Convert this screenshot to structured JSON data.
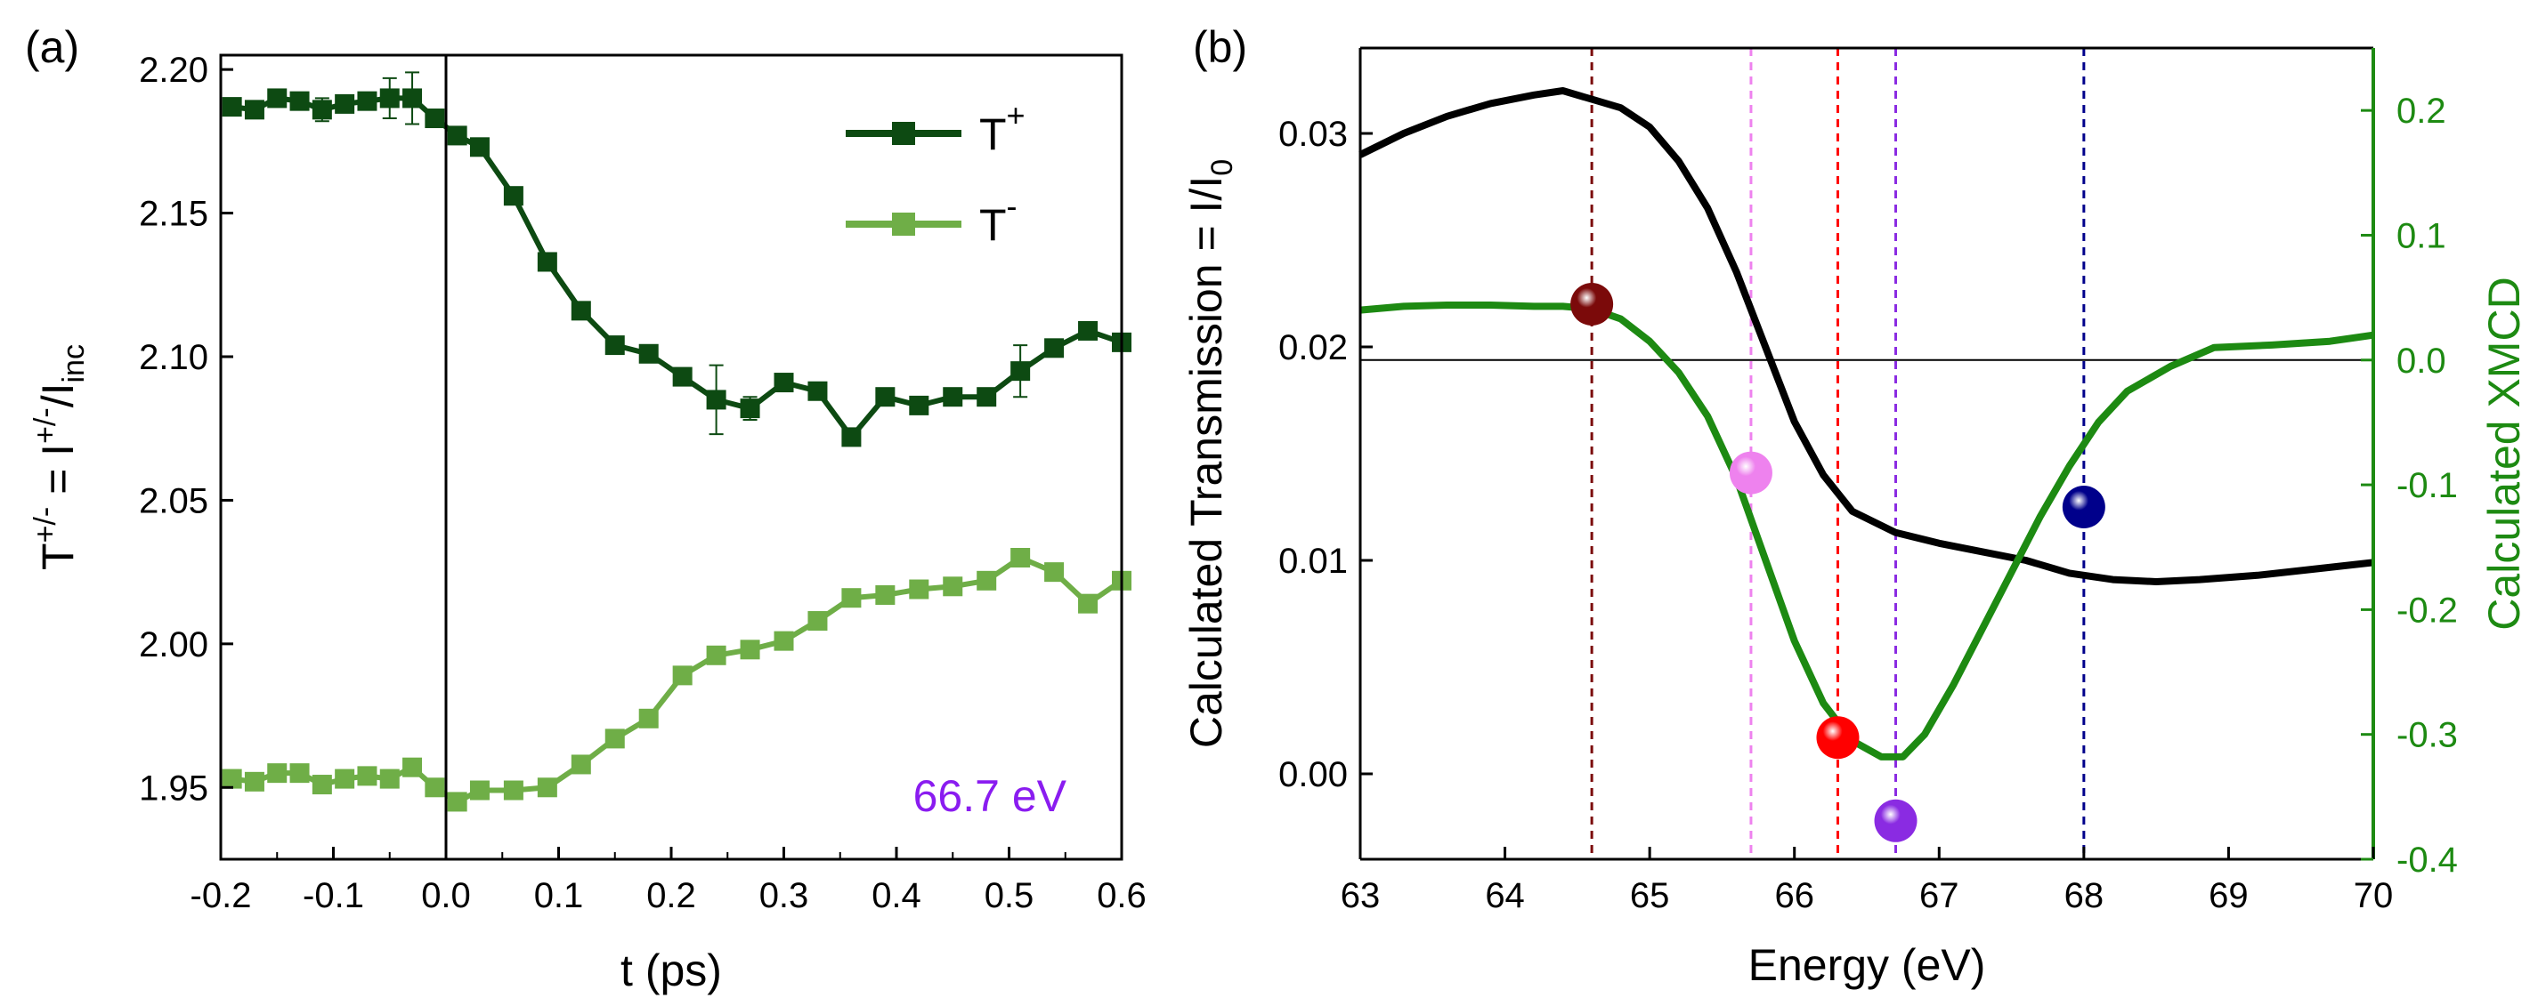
{
  "chart_data": [
    {
      "panel_label": "(a)",
      "type": "line",
      "xlabel": "t (ps)",
      "ylabel": "T+/- = I+/-/Iinc",
      "ylabel_parts": {
        "base": "T",
        "sup1": "+/-",
        "mid": " = I",
        "sup2": "+/-",
        "slash": "/I",
        "sub": "inc"
      },
      "xlim": [
        -0.2,
        0.6
      ],
      "ylim": [
        1.925,
        2.205
      ],
      "xticks": [
        "-0.2",
        "-0.1",
        "0.0",
        "0.1",
        "0.2",
        "0.3",
        "0.4",
        "0.5",
        "0.6"
      ],
      "yticks": [
        "1.95",
        "2.00",
        "2.05",
        "2.10",
        "2.15",
        "2.20"
      ],
      "annotation": "66.7 eV",
      "annotation_color": "#8a1cf0",
      "vline_x": 0.0,
      "x": [
        -0.19,
        -0.17,
        -0.15,
        -0.13,
        -0.11,
        -0.09,
        -0.07,
        -0.05,
        -0.03,
        -0.01,
        0.01,
        0.03,
        0.06,
        0.09,
        0.12,
        0.15,
        0.18,
        0.21,
        0.24,
        0.27,
        0.3,
        0.33,
        0.36,
        0.39,
        0.42,
        0.45,
        0.48,
        0.51,
        0.54,
        0.57,
        0.6
      ],
      "series": [
        {
          "name": "T+",
          "legend": {
            "base": "T",
            "sup": "+"
          },
          "color": "#0d4a12",
          "values": [
            2.187,
            2.186,
            2.19,
            2.189,
            2.186,
            2.188,
            2.189,
            2.19,
            2.19,
            2.183,
            2.177,
            2.173,
            2.156,
            2.133,
            2.116,
            2.104,
            2.101,
            2.093,
            2.085,
            2.082,
            2.091,
            2.088,
            2.072,
            2.086,
            2.083,
            2.086,
            2.086,
            2.095,
            2.103,
            2.109,
            2.105
          ],
          "errors": [
            0.002,
            0.002,
            0.002,
            0.003,
            0.004,
            0.002,
            0.002,
            0.007,
            0.009,
            0.003,
            0.003,
            0.003,
            0.002,
            0.002,
            0.002,
            0.002,
            0.002,
            0.003,
            0.012,
            0.004,
            0.002,
            0.002,
            0.002,
            0.002,
            0.002,
            0.002,
            0.003,
            0.009,
            0.003,
            0.002,
            0.002
          ]
        },
        {
          "name": "T-",
          "legend": {
            "base": "T",
            "sup": "-"
          },
          "color": "#6fae47",
          "values": [
            1.953,
            1.952,
            1.955,
            1.955,
            1.951,
            1.953,
            1.954,
            1.953,
            1.957,
            1.95,
            1.945,
            1.949,
            1.949,
            1.95,
            1.958,
            1.967,
            1.974,
            1.989,
            1.996,
            1.998,
            2.001,
            2.008,
            2.016,
            2.017,
            2.019,
            2.02,
            2.022,
            2.03,
            2.025,
            2.014,
            2.022
          ],
          "errors": [
            0.003,
            0.003,
            0.002,
            0.003,
            0.003,
            0.003,
            0.003,
            0.003,
            0.003,
            0.003,
            0.003,
            0.002,
            0.002,
            0.002,
            0.002,
            0.002,
            0.002,
            0.002,
            0.002,
            0.002,
            0.002,
            0.002,
            0.002,
            0.002,
            0.002,
            0.002,
            0.003,
            0.003,
            0.003,
            0.002,
            0.002
          ]
        }
      ]
    },
    {
      "panel_label": "(b)",
      "type": "line",
      "xlabel": "Energy (eV)",
      "ylabel_left_parts": {
        "base": "Calculated Transmission = I/I",
        "sub": "0"
      },
      "ylabel_right": "Calculated XMCD",
      "ylabel_right_color": "#1d8a12",
      "xlim": [
        63,
        70
      ],
      "ylim_left": [
        -0.004,
        0.034
      ],
      "ylim_right": [
        -0.4,
        0.25
      ],
      "xticks": [
        "63",
        "64",
        "65",
        "66",
        "67",
        "68",
        "69",
        "70"
      ],
      "yticks_left": [
        "0.00",
        "0.01",
        "0.02",
        "0.03"
      ],
      "yticks_right": [
        "-0.4",
        "-0.3",
        "-0.2",
        "-0.1",
        "0.0",
        "0.1",
        "0.2"
      ],
      "zero_line_right": 0.0,
      "series": [
        {
          "name": "Calculated Transmission",
          "axis": "left",
          "color": "#000000",
          "x": [
            63.0,
            63.3,
            63.6,
            63.9,
            64.2,
            64.4,
            64.6,
            64.8,
            65.0,
            65.2,
            65.4,
            65.6,
            65.8,
            66.0,
            66.2,
            66.4,
            66.7,
            67.0,
            67.3,
            67.6,
            67.9,
            68.2,
            68.5,
            68.8,
            69.2,
            69.6,
            70.0
          ],
          "values": [
            0.029,
            0.03,
            0.0308,
            0.0314,
            0.0318,
            0.032,
            0.0316,
            0.0312,
            0.0303,
            0.0287,
            0.0265,
            0.0235,
            0.02,
            0.0165,
            0.014,
            0.0123,
            0.0113,
            0.0108,
            0.0104,
            0.01,
            0.0094,
            0.0091,
            0.009,
            0.0091,
            0.0093,
            0.0096,
            0.0099
          ]
        },
        {
          "name": "Calculated XMCD",
          "axis": "right",
          "color": "#1d8a12",
          "x": [
            63.0,
            63.3,
            63.6,
            63.9,
            64.2,
            64.4,
            64.6,
            64.8,
            65.0,
            65.2,
            65.4,
            65.6,
            65.8,
            66.0,
            66.2,
            66.4,
            66.6,
            66.75,
            66.9,
            67.1,
            67.3,
            67.5,
            67.7,
            67.9,
            68.1,
            68.3,
            68.6,
            68.9,
            69.3,
            69.7,
            70.0
          ],
          "values": [
            0.04,
            0.043,
            0.044,
            0.044,
            0.043,
            0.043,
            0.041,
            0.033,
            0.015,
            -0.01,
            -0.045,
            -0.095,
            -0.16,
            -0.225,
            -0.275,
            -0.305,
            -0.318,
            -0.318,
            -0.3,
            -0.26,
            -0.215,
            -0.17,
            -0.125,
            -0.085,
            -0.05,
            -0.025,
            -0.005,
            0.01,
            0.012,
            0.015,
            0.02
          ]
        }
      ],
      "vlines": [
        {
          "x": 64.6,
          "color": "#7b0a0a"
        },
        {
          "x": 65.7,
          "color": "#ee82ee"
        },
        {
          "x": 66.3,
          "color": "#ff0000"
        },
        {
          "x": 66.7,
          "color": "#8a2be2"
        },
        {
          "x": 68.0,
          "color": "#00008b"
        }
      ],
      "markers": [
        {
          "x": 64.6,
          "y": 0.022,
          "color": "#7b0a0a"
        },
        {
          "x": 65.7,
          "y": 0.0141,
          "color": "#ee82ee"
        },
        {
          "x": 66.3,
          "y": 0.0017,
          "color": "#ff0000"
        },
        {
          "x": 66.7,
          "y": -0.0022,
          "color": "#8a2be2"
        },
        {
          "x": 68.0,
          "y": 0.0125,
          "color": "#00008b"
        }
      ]
    }
  ]
}
